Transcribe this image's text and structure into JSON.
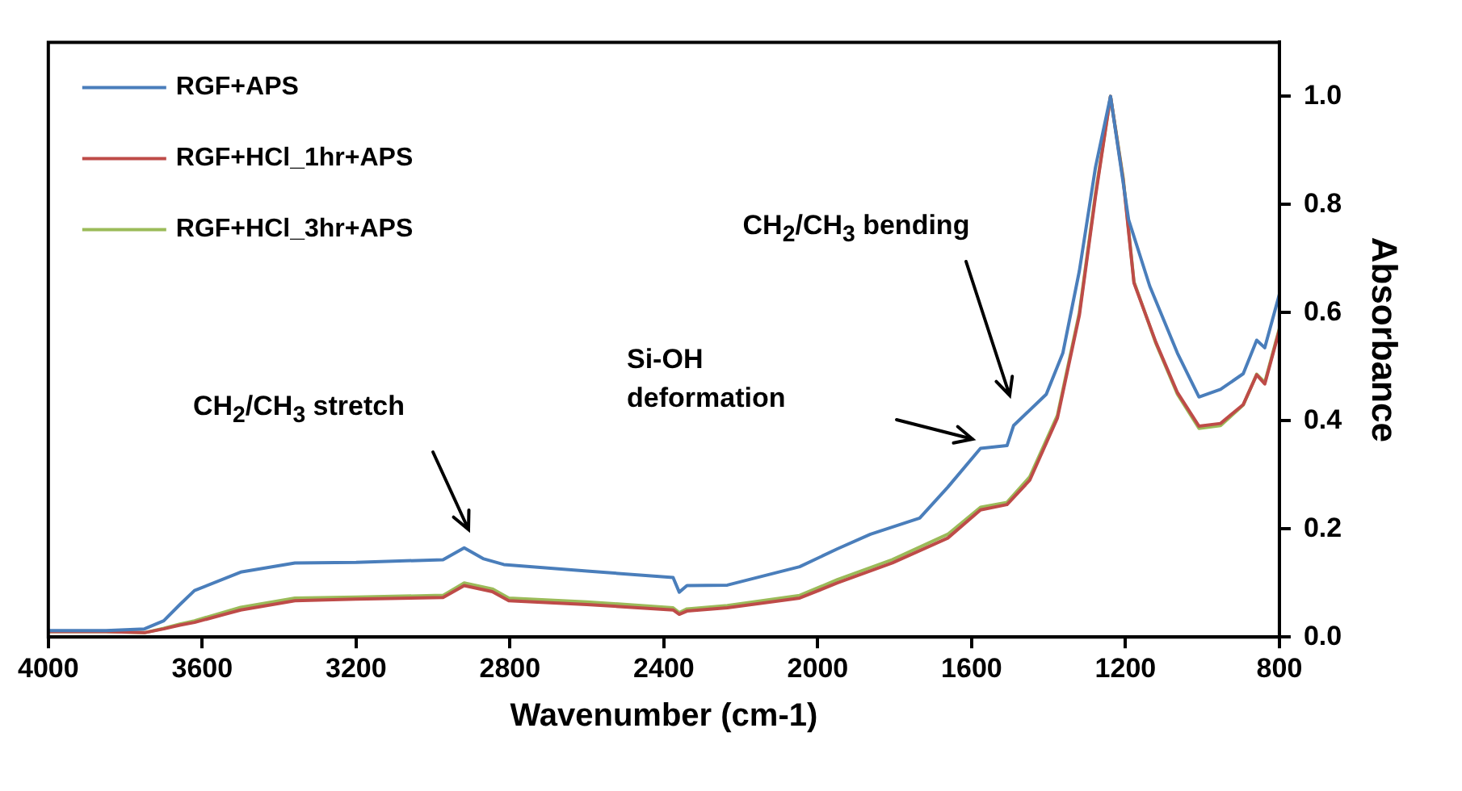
{
  "chart_data": {
    "type": "line",
    "xlabel": "Wavenumber (cm-1)",
    "ylabel": "Absorbance",
    "xlim": [
      4000,
      800
    ],
    "xticks": [
      4000,
      3600,
      3200,
      2800,
      2400,
      2000,
      1600,
      1200,
      800
    ],
    "ylim": [
      0,
      1.1
    ],
    "yticks": [
      {
        "value": 0,
        "label": "0.0"
      },
      {
        "value": 0.2,
        "label": "0.2"
      },
      {
        "value": 0.4,
        "label": "0.4"
      },
      {
        "value": 0.6,
        "label": "0.6"
      },
      {
        "value": 0.8,
        "label": "0.8"
      },
      {
        "value": 1,
        "label": "1.0"
      }
    ],
    "grid": false,
    "legend": "top left",
    "marker": "none",
    "line_style": "solid",
    "series": [
      {
        "name": "RGF+APS",
        "color": "#4a7ebb",
        "x": [
          4000,
          3850,
          3750,
          3700,
          3658,
          3620,
          3500,
          3359,
          3200,
          2974,
          2919,
          2870,
          2816,
          2600,
          2376,
          2360,
          2340,
          2235,
          2047,
          1949,
          1863,
          1735,
          1662,
          1577,
          1508,
          1491,
          1406,
          1363,
          1320,
          1278,
          1239,
          1192,
          1137,
          1065,
          1009,
          953,
          894,
          859,
          838,
          800
        ],
        "values": [
          0.012,
          0.012,
          0.015,
          0.03,
          0.06,
          0.086,
          0.12,
          0.137,
          0.138,
          0.143,
          0.165,
          0.145,
          0.134,
          0.122,
          0.11,
          0.083,
          0.095,
          0.096,
          0.13,
          0.163,
          0.19,
          0.22,
          0.277,
          0.349,
          0.354,
          0.391,
          0.449,
          0.525,
          0.677,
          0.869,
          1.0,
          0.772,
          0.649,
          0.525,
          0.444,
          0.458,
          0.487,
          0.549,
          0.535,
          0.634
        ]
      },
      {
        "name": "RGF+HCl_1hr+APS",
        "color": "#be4b48",
        "x": [
          4000,
          3850,
          3750,
          3700,
          3658,
          3620,
          3500,
          3359,
          3200,
          2974,
          2919,
          2846,
          2803,
          2600,
          2376,
          2360,
          2340,
          2235,
          2047,
          1949,
          1806,
          1662,
          1577,
          1508,
          1449,
          1377,
          1320,
          1278,
          1239,
          1206,
          1178,
          1121,
          1065,
          1009,
          953,
          894,
          859,
          838,
          800
        ],
        "values": [
          0.01,
          0.01,
          0.008,
          0.015,
          0.022,
          0.027,
          0.05,
          0.067,
          0.07,
          0.073,
          0.095,
          0.084,
          0.067,
          0.06,
          0.05,
          0.042,
          0.048,
          0.054,
          0.072,
          0.1,
          0.137,
          0.183,
          0.235,
          0.245,
          0.29,
          0.405,
          0.595,
          0.815,
          1.0,
          0.845,
          0.655,
          0.545,
          0.452,
          0.39,
          0.395,
          0.43,
          0.485,
          0.468,
          0.568
        ]
      },
      {
        "name": "RGF+HCl_3hr+APS",
        "color": "#9bbb59",
        "x": [
          4000,
          3850,
          3750,
          3700,
          3658,
          3620,
          3500,
          3359,
          3200,
          2974,
          2919,
          2846,
          2803,
          2600,
          2376,
          2360,
          2340,
          2235,
          2047,
          1949,
          1806,
          1662,
          1577,
          1508,
          1449,
          1377,
          1320,
          1278,
          1239,
          1206,
          1178,
          1121,
          1065,
          1009,
          953,
          894,
          859,
          838,
          800
        ],
        "values": [
          0.01,
          0.01,
          0.008,
          0.016,
          0.024,
          0.03,
          0.055,
          0.072,
          0.074,
          0.077,
          0.1,
          0.089,
          0.072,
          0.065,
          0.054,
          0.045,
          0.052,
          0.058,
          0.077,
          0.106,
          0.143,
          0.19,
          0.24,
          0.249,
          0.296,
          0.41,
          0.6,
          0.82,
          1.0,
          0.849,
          0.657,
          0.543,
          0.449,
          0.386,
          0.391,
          0.429,
          0.486,
          0.471,
          0.571
        ]
      }
    ],
    "annotations": [
      "CH$_{2}$/CH$_{3}$ stretch",
      "Si-OH deformation",
      "CH$_{2}$/CH$_{3}$ bending"
    ]
  }
}
